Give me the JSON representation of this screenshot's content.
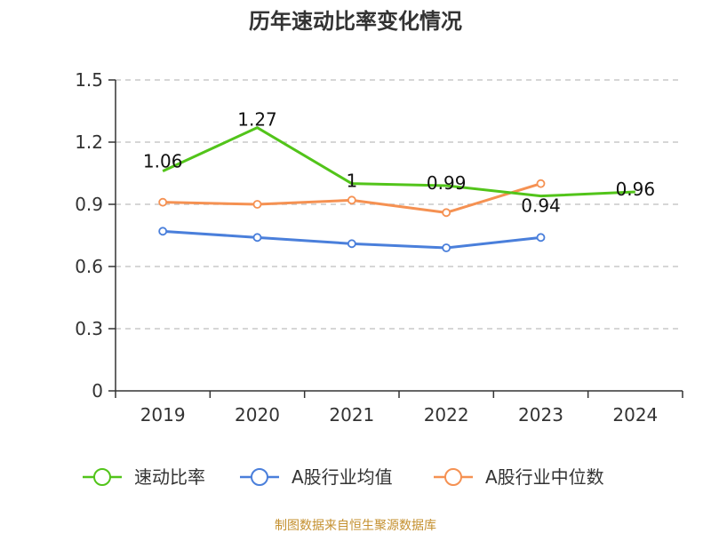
{
  "chart_data": {
    "type": "line",
    "title": "历年速动比率变化情况",
    "categories": [
      "2019",
      "2020",
      "2021",
      "2022",
      "2023",
      "2024"
    ],
    "ylim": [
      0,
      1.5
    ],
    "yticks": [
      "0",
      "0.3",
      "0.6",
      "0.9",
      "1.2",
      "1.5"
    ],
    "grid": true,
    "legend_position": "bottom",
    "series": [
      {
        "name": "速动比率",
        "color": "#52c41a",
        "values": [
          1.06,
          1.27,
          1.0,
          0.99,
          0.94,
          0.96
        ],
        "labels": [
          "1.06",
          "1.27",
          "1",
          "0.99",
          "0.94",
          "0.96"
        ],
        "show_labels": true
      },
      {
        "name": "A股行业均值",
        "color": "#4a7fdb",
        "values": [
          0.77,
          0.74,
          0.71,
          0.69,
          0.74,
          null
        ],
        "show_labels": false
      },
      {
        "name": "A股行业中位数",
        "color": "#f59152",
        "values": [
          0.91,
          0.9,
          0.92,
          0.86,
          1.0,
          null
        ],
        "show_labels": false
      }
    ]
  },
  "footer": "制图数据来自恒生聚源数据库"
}
